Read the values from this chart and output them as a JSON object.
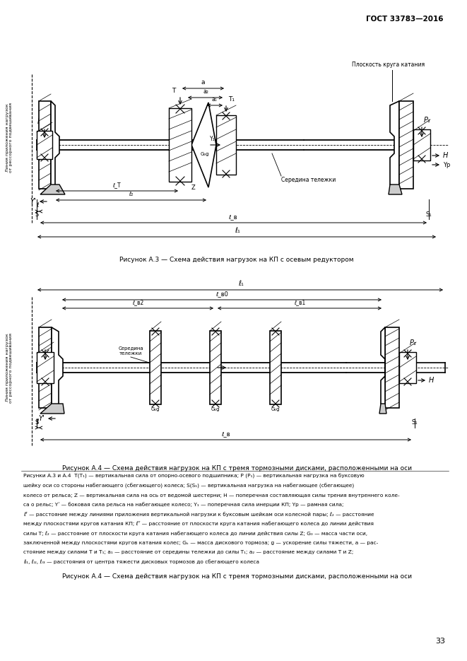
{
  "page_title": "ГОСТ 33783—2016",
  "page_number": "33",
  "fig3_caption": "Рисунок А.3 — Схема действия нагрузок на КП с осевым редуктором",
  "fig4_caption": "Рисунок А.4 — Схема действия нагрузок на КП с тремя тормозными дисками, расположенными на оси",
  "rolling_plane_label": "Плоскость круга катания",
  "center_bogie_label": "Середина тележки",
  "footnote_lines": [
    "Рисунки А.3 и А.4  T(T₁) — вертикальная сила от опорно-осевого подшипника; P (P₁) — вертикальная нагрузка на буксовую",
    "шейку оси со стороны набегающего (сбегающего) колеса; S(S₁) — вертикальная нагрузка на набегающее (сбегающее)",
    "колесо от рельса; Z — вертикальная сила на ось от ведомой шестерни; H — поперечная составляющая силы трения внутреннего коле-",
    "са о рельс; Yʹ — боковая сила рельса на набегающее колесо; Y₁ — поперечная сила инерции КП; Yр — рамная сила;",
    "ℓᵀ — расстояние между линиями приложения вертикальной нагрузки к буксовым шейкам оси колесной пары; ℓ₂ — расстояние",
    "между плоскостями кругов катания КП; ℓᵀ — расстояние от плоскости круга катания набегающего колеса до линии действия",
    "силы T; ℓ₂ — расстояние от плоскости круга катания набегающего колеса до линии действия силы Z; G₀ — масса части оси,",
    "заключенной между плоскостями кругов катания колес; Gₖ — масса дискового тормоза; g — ускорение силы тяжести, a — рас-",
    "стояние между силами T и T₁; a₁ — расстояние от середины тележки до силы T₁; a₂ — расстояние между силами T и Z;",
    "ℓₗ₁, ℓₗ₂, ℓₗ₃ — расстояния от центра тяжести дисковых тормозов до сбегающего колеса"
  ],
  "background_color": "#ffffff",
  "line_color": "#000000",
  "text_color": "#000000"
}
